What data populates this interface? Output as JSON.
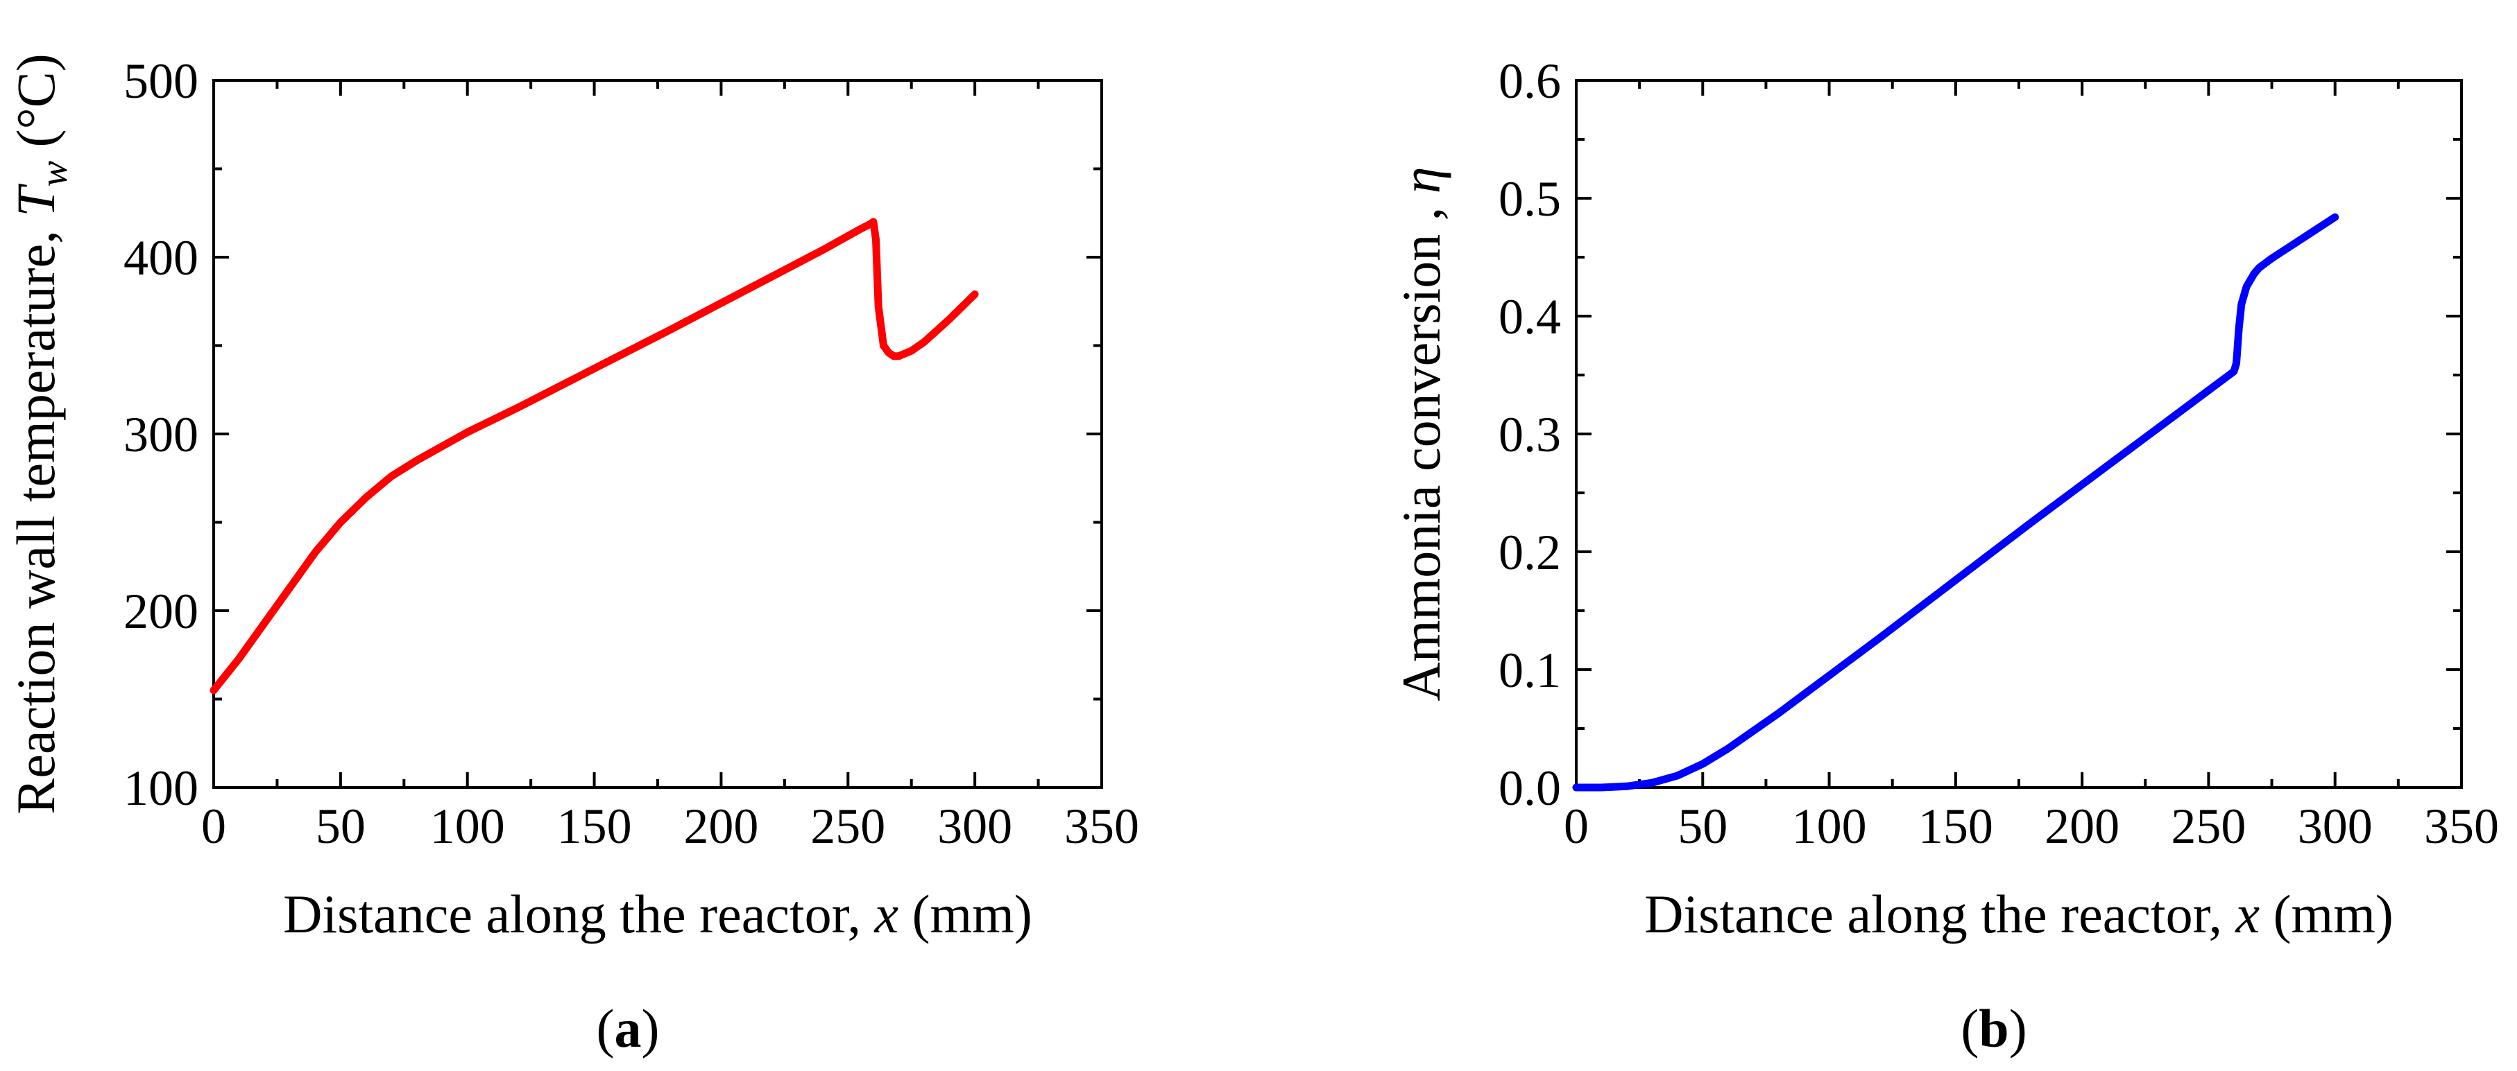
{
  "chart_data": [
    {
      "type": "line",
      "panel_label": "a",
      "xlabel": "Distance along the reactor, x (mm)",
      "xlabel_parts": [
        "Distance along the reactor, ",
        "x",
        " (mm)"
      ],
      "ylabel": "Reaction wall temperature, Tw (°C)",
      "ylabel_parts": [
        "Reaction wall temperature, ",
        "T",
        "w",
        " (°C)"
      ],
      "xlim": [
        0,
        350
      ],
      "ylim": [
        100,
        500
      ],
      "xticks": [
        0,
        50,
        100,
        150,
        200,
        250,
        300,
        350
      ],
      "yticks": [
        100,
        200,
        300,
        400,
        500
      ],
      "ytick_labels": [
        "100",
        "200",
        "300",
        "400",
        "500"
      ],
      "grid": false,
      "series": [
        {
          "name": "Tw",
          "color": "#ff0000",
          "x": [
            0,
            10,
            20,
            30,
            40,
            50,
            60,
            70,
            80,
            100,
            120,
            150,
            180,
            200,
            220,
            240,
            255,
            259,
            260,
            261,
            262,
            264,
            266,
            268,
            270,
            275,
            280,
            290,
            300
          ],
          "y": [
            155,
            173,
            193,
            213,
            233,
            250,
            264,
            276,
            285,
            301,
            315,
            337,
            359,
            374,
            389,
            404,
            416,
            419,
            420,
            410,
            372,
            350,
            346,
            344,
            344,
            347,
            352,
            365,
            379
          ]
        }
      ]
    },
    {
      "type": "line",
      "panel_label": "b",
      "xlabel": "Distance along the reactor, x (mm)",
      "xlabel_parts": [
        "Distance along the reactor, ",
        "x",
        " (mm)"
      ],
      "ylabel": "Ammonia conversion , η",
      "ylabel_parts": [
        "Ammonia conversion , ",
        "η"
      ],
      "xlim": [
        0,
        350
      ],
      "ylim": [
        0,
        0.6
      ],
      "xticks": [
        0,
        50,
        100,
        150,
        200,
        250,
        300,
        350
      ],
      "yticks": [
        0,
        0.1,
        0.2,
        0.3,
        0.4,
        0.5,
        0.6
      ],
      "ytick_labels": [
        "0.0",
        "0.1",
        "0.2",
        "0.3",
        "0.4",
        "0.5",
        "0.6"
      ],
      "grid": false,
      "series": [
        {
          "name": "eta",
          "color": "#0000ff",
          "x": [
            0,
            10,
            20,
            30,
            40,
            50,
            60,
            70,
            80,
            90,
            100,
            120,
            150,
            180,
            200,
            220,
            240,
            255,
            260,
            261,
            262,
            263,
            265,
            268,
            270,
            275,
            280,
            290,
            300
          ],
          "y": [
            0,
            0,
            0.001,
            0.004,
            0.01,
            0.02,
            0.033,
            0.048,
            0.063,
            0.079,
            0.095,
            0.127,
            0.176,
            0.225,
            0.257,
            0.289,
            0.321,
            0.345,
            0.353,
            0.36,
            0.39,
            0.41,
            0.425,
            0.436,
            0.441,
            0.449,
            0.456,
            0.47,
            0.484
          ]
        }
      ]
    }
  ],
  "captions": [
    "a",
    "b"
  ]
}
